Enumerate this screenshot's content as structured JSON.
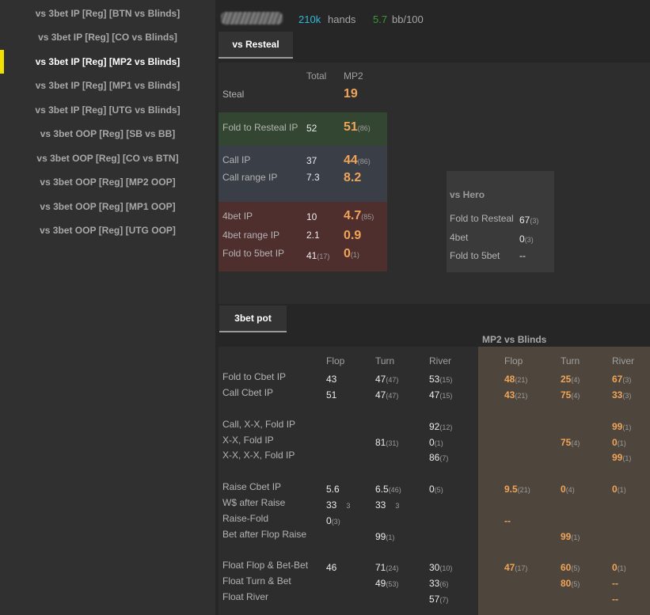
{
  "sidebar": {
    "items": [
      {
        "label": "vs 3bet IP [Reg] [BTN vs Blinds]"
      },
      {
        "label": "vs 3bet IP [Reg] [CO vs Blinds]"
      },
      {
        "label": "vs 3bet IP [Reg] [MP2 vs Blinds]"
      },
      {
        "label": "vs 3bet IP [Reg] [MP1 vs Blinds]"
      },
      {
        "label": "vs 3bet IP [Reg] [UTG vs Blinds]"
      },
      {
        "label": "vs 3bet OOP [Reg] [SB vs BB]"
      },
      {
        "label": "vs 3bet OOP [Reg] [CO vs BTN]"
      },
      {
        "label": "vs 3bet OOP [Reg] [MP2 OOP]"
      },
      {
        "label": "vs 3bet OOP [Reg] [MP1 OOP]"
      },
      {
        "label": "vs 3bet OOP [Reg] [UTG OOP]"
      }
    ],
    "active_index": 2
  },
  "header": {
    "hands_value": "210k",
    "hands_label": "hands",
    "winrate_value": "5.7",
    "winrate_label": "bb/100"
  },
  "colors": {
    "accent_yellow": "#f0e000",
    "orange_value": "#f0a45a",
    "hands_blue": "#2fb8d8",
    "winrate_green": "#3a9a3a",
    "fold_band": "#334631",
    "call_band": "#3a3e46",
    "fourbet_band": "#4f2e2e",
    "mp2_panel": "#4e463c"
  },
  "resteal": {
    "tab_label": "vs Resteal",
    "col_total": "Total",
    "col_pos": "MP2",
    "steal": {
      "label": "Steal",
      "pos": "19"
    },
    "fold_to_resteal": {
      "label": "Fold to Resteal IP",
      "total": "52",
      "pos": "51",
      "pos_n": "(86)"
    },
    "call_ip": {
      "label": "Call IP",
      "total": "37",
      "pos": "44",
      "pos_n": "(86)"
    },
    "call_range_ip": {
      "label": "Call range IP",
      "total": "7.3",
      "pos": "8.2"
    },
    "fourbet_ip": {
      "label": "4bet IP",
      "total": "10",
      "pos": "4.7",
      "pos_n": "(85)"
    },
    "fourbet_range_ip": {
      "label": "4bet range IP",
      "total": "2.1",
      "pos": "0.9"
    },
    "fold_to_5bet_ip": {
      "label": "Fold to 5bet IP",
      "total": "41",
      "total_n": "(17)",
      "pos": "0",
      "pos_n": "(1)"
    }
  },
  "vs_hero": {
    "title": "vs Hero",
    "fold_to_resteal": {
      "label": "Fold to Resteal",
      "value": "67",
      "n": "(3)"
    },
    "fourbet": {
      "label": "4bet",
      "value": "0",
      "n": "(3)"
    },
    "fold_to_5bet": {
      "label": "Fold to 5bet",
      "value": "--"
    }
  },
  "threebet_pot": {
    "tab_label": "3bet pot",
    "panel_title": "MP2 vs Blinds",
    "cols": {
      "flop": "Flop",
      "turn": "Turn",
      "river": "River"
    },
    "rows": {
      "fold_to_cbet": {
        "label": "Fold to Cbet IP",
        "t_flop": "43",
        "t_turn": "47",
        "t_turn_n": "(47)",
        "t_river": "53",
        "t_river_n": "(15)",
        "p_flop": "48",
        "p_flop_n": "(21)",
        "p_turn": "25",
        "p_turn_n": "(4)",
        "p_river": "67",
        "p_river_n": "(3)"
      },
      "call_cbet": {
        "label": "Call Cbet IP",
        "t_flop": "51",
        "t_turn": "47",
        "t_turn_n": "(47)",
        "t_river": "47",
        "t_river_n": "(15)",
        "p_flop": "43",
        "p_flop_n": "(21)",
        "p_turn": "75",
        "p_turn_n": "(4)",
        "p_river": "33",
        "p_river_n": "(3)"
      },
      "call_xx_fold": {
        "label": "Call, X-X, Fold IP",
        "t_river": "92",
        "t_river_n": "(12)",
        "p_river": "99",
        "p_river_n": "(1)"
      },
      "xx_fold": {
        "label": "X-X, Fold IP",
        "t_turn": "81",
        "t_turn_n": "(31)",
        "t_river": "0",
        "t_river_n": "(1)",
        "p_turn": "75",
        "p_turn_n": "(4)",
        "p_river": "0",
        "p_river_n": "(1)"
      },
      "xx_xx_fold": {
        "label": "X-X, X-X, Fold IP",
        "t_river": "86",
        "t_river_n": "(7)",
        "p_river": "99",
        "p_river_n": "(1)"
      },
      "raise_cbet": {
        "label": "Raise Cbet IP",
        "t_flop": "5.6",
        "t_turn": "6.5",
        "t_turn_n": "(46)",
        "t_river": "0",
        "t_river_n": "(5)",
        "p_flop": "9.5",
        "p_flop_n": "(21)",
        "p_turn": "0",
        "p_turn_n": "(4)",
        "p_river": "0",
        "p_river_n": "(1)"
      },
      "wsd_after_raise": {
        "label": "W$ after Raise",
        "t_flop": "33",
        "t_flop_n": "3",
        "t_turn": "33",
        "t_turn_n": "3"
      },
      "raise_fold": {
        "label": "Raise-Fold",
        "t_flop": "0",
        "t_flop_n": "(3)",
        "p_flop": "--"
      },
      "bet_after_flop_raise": {
        "label": "Bet after Flop Raise",
        "t_turn": "99",
        "t_turn_n": "(1)",
        "p_turn": "99",
        "p_turn_n": "(1)"
      },
      "float_flop_bet_bet": {
        "label": "Float Flop & Bet-Bet",
        "t_flop": "46",
        "t_turn": "71",
        "t_turn_n": "(24)",
        "t_river": "30",
        "t_river_n": "(10)",
        "p_flop": "47",
        "p_flop_n": "(17)",
        "p_turn": "60",
        "p_turn_n": "(5)",
        "p_river": "0",
        "p_river_n": "(1)"
      },
      "float_turn_bet": {
        "label": "Float Turn & Bet",
        "t_turn": "49",
        "t_turn_n": "(53)",
        "t_river": "33",
        "t_river_n": "(6)",
        "p_turn": "80",
        "p_turn_n": "(5)",
        "p_river": "--"
      },
      "float_river": {
        "label": "Float River",
        "t_river": "57",
        "t_river_n": "(7)",
        "p_river": "--"
      }
    }
  }
}
